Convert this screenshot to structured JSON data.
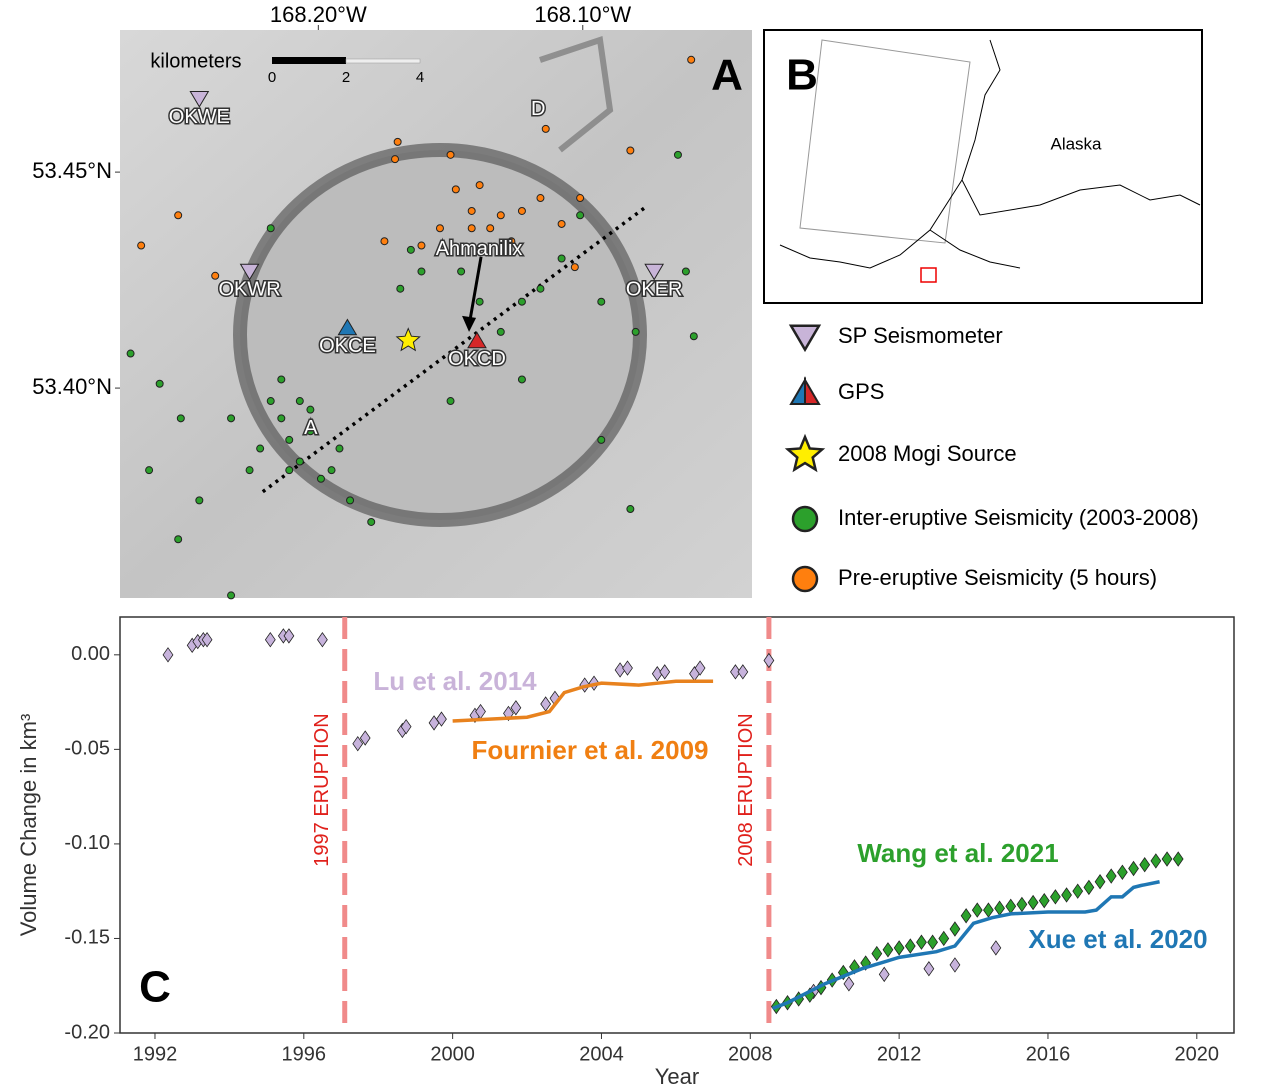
{
  "chart_data": [
    {
      "type": "map",
      "panel_label": "A",
      "xlim": [
        -168.275,
        -168.036
      ],
      "ylim": [
        53.3514,
        53.4829
      ],
      "xticks": [
        {
          "value": -168.2,
          "label": "168.20°W"
        },
        {
          "value": -168.1,
          "label": "168.10°W"
        }
      ],
      "yticks": [
        {
          "value": 53.4,
          "label": "53.40°N"
        },
        {
          "value": 53.45,
          "label": "53.45°N"
        }
      ],
      "scale_bar": {
        "title": "kilometers",
        "ticks": [
          0,
          2,
          4
        ]
      },
      "profile": {
        "lon": [
          -168.221,
          -168.076
        ],
        "lat": [
          53.376,
          53.442
        ],
        "labels": [
          "A",
          "D"
        ]
      },
      "annotation": {
        "text": "Ahmanilix",
        "lon": -168.143,
        "lat": 53.413
      },
      "series": [
        {
          "name": "SP Seismometer",
          "marker": "triangle-down",
          "color": "#c8b4d8",
          "labels": [
            "OKWE",
            "OKWR",
            "OKER"
          ],
          "lon": [
            -168.245,
            -168.226,
            -168.073
          ],
          "lat": [
            53.467,
            53.427,
            53.427
          ]
        },
        {
          "name": "GPS",
          "marker": "triangle",
          "colors": [
            "#1f77b4",
            "#d62728"
          ],
          "labels": [
            "OKCE",
            "OKCD"
          ],
          "lon": [
            -168.189,
            -168.14
          ],
          "lat": [
            53.414,
            53.411
          ]
        },
        {
          "name": "2008 Mogi Source",
          "marker": "star",
          "color": "#ffee00",
          "lon": [
            -168.166
          ],
          "lat": [
            53.411
          ]
        },
        {
          "name": "Inter-eruptive Seismicity (2003-2008)",
          "marker": "circle",
          "color": "#2ca02c",
          "lon": [
            -168.271,
            -168.26,
            -168.252,
            -168.264,
            -168.253,
            -168.233,
            -168.218,
            -168.214,
            -168.211,
            -168.207,
            -168.203,
            -168.222,
            -168.199,
            -168.192,
            -168.226,
            -168.207,
            -168.188,
            -168.18,
            -168.233,
            -168.245,
            -168.218,
            -168.161,
            -168.146,
            -168.139,
            -168.131,
            -168.123,
            -168.116,
            -168.108,
            -168.093,
            -168.08,
            -168.061,
            -168.064,
            -168.058,
            -168.093,
            -168.15,
            -168.123,
            -168.169,
            -168.165,
            -168.101,
            -168.082,
            -168.211,
            -168.214,
            -168.203,
            -168.195
          ],
          "lat": [
            53.408,
            53.401,
            53.393,
            53.381,
            53.365,
            53.352,
            53.397,
            53.393,
            53.388,
            53.383,
            53.39,
            53.386,
            53.379,
            53.386,
            53.381,
            53.397,
            53.374,
            53.369,
            53.393,
            53.374,
            53.437,
            53.427,
            53.427,
            53.42,
            53.413,
            53.42,
            53.423,
            53.43,
            53.42,
            53.413,
            53.427,
            53.454,
            53.412,
            53.388,
            53.397,
            53.402,
            53.423,
            53.432,
            53.44,
            53.372,
            53.381,
            53.402,
            53.395,
            53.381
          ]
        },
        {
          "name": "Pre-eruptive Seismicity (5 hours)",
          "marker": "circle",
          "color": "#ff7f0e",
          "lon": [
            -168.267,
            -168.253,
            -168.239,
            -168.17,
            -168.15,
            -168.139,
            -168.142,
            -168.131,
            -168.123,
            -168.116,
            -168.108,
            -168.101,
            -168.103,
            -168.175,
            -168.161,
            -168.154,
            -168.142,
            -168.127,
            -168.114,
            -168.082,
            -168.059,
            -168.171,
            -168.135,
            -168.148
          ],
          "lat": [
            53.433,
            53.44,
            53.426,
            53.457,
            53.454,
            53.447,
            53.441,
            53.44,
            53.441,
            53.444,
            53.438,
            53.444,
            53.428,
            53.434,
            53.433,
            53.437,
            53.437,
            53.434,
            53.46,
            53.455,
            53.476,
            53.453,
            53.437,
            53.446
          ]
        }
      ]
    },
    {
      "type": "line",
      "panel_label": "C",
      "x_label": "Year",
      "y_label": "Volume Change in km³",
      "xlim": [
        1991.06,
        2021.0
      ],
      "ylim": [
        -0.2,
        0.02
      ],
      "xticks": [
        1992,
        1996,
        2000,
        2004,
        2008,
        2012,
        2016,
        2020
      ],
      "yticks": [
        {
          "value": 0,
          "label": "0.00"
        },
        {
          "value": -0.05,
          "label": "-0.05"
        },
        {
          "value": -0.1,
          "label": "-0.10"
        },
        {
          "value": -0.15,
          "label": "-0.15"
        },
        {
          "value": -0.2,
          "label": "-0.20"
        }
      ],
      "events": [
        {
          "x": 1997.1,
          "label": "1997 ERUPTION"
        },
        {
          "x": 2008.5,
          "label": "2008 ERUPTION"
        }
      ],
      "series": [
        {
          "name": "Lu et al. 2014",
          "style": "diamond",
          "color": "#c7b3dc",
          "label_color": "#c9b3d9",
          "x": [
            1992.35,
            1993.0,
            1993.15,
            1993.3,
            1993.4,
            1995.1,
            1995.45,
            1995.6,
            1996.5,
            1997.45,
            1997.65,
            1998.65,
            1998.75,
            1999.5,
            1999.7,
            2000.6,
            2000.75,
            2001.5,
            2001.7,
            2002.5,
            2002.75,
            2003.55,
            2003.8,
            2004.5,
            2004.7,
            2005.5,
            2005.7,
            2006.5,
            2006.65,
            2007.6,
            2007.8,
            2008.5,
            2009.7,
            2010.65,
            2011.6,
            2012.8,
            2013.5,
            2014.6
          ],
          "values": [
            0.0,
            0.005,
            0.007,
            0.008,
            0.008,
            0.008,
            0.01,
            0.01,
            0.008,
            -0.047,
            -0.044,
            -0.04,
            -0.038,
            -0.036,
            -0.034,
            -0.032,
            -0.03,
            -0.031,
            -0.028,
            -0.026,
            -0.023,
            -0.016,
            -0.015,
            -0.008,
            -0.007,
            -0.01,
            -0.009,
            -0.01,
            -0.007,
            -0.009,
            -0.009,
            -0.003,
            -0.178,
            -0.174,
            -0.169,
            -0.166,
            -0.164,
            -0.155
          ]
        },
        {
          "name": "Fournier et al. 2009",
          "style": "line",
          "color": "#e8821e",
          "label_color": "#f07f12",
          "x": [
            2000,
            2001,
            2002,
            2002.6,
            2003,
            2003.5,
            2004,
            2005,
            2005.5,
            2006,
            2007
          ],
          "values": [
            -0.035,
            -0.034,
            -0.033,
            -0.03,
            -0.02,
            -0.017,
            -0.015,
            -0.016,
            -0.015,
            -0.014,
            -0.014
          ]
        },
        {
          "name": "Wang et al. 2021",
          "style": "diamond",
          "color": "#2ca02c",
          "label_color": "#2ca02c",
          "x": [
            2008.7,
            2009.0,
            2009.3,
            2009.6,
            2009.9,
            2010.2,
            2010.5,
            2010.8,
            2011.1,
            2011.4,
            2011.7,
            2012.0,
            2012.3,
            2012.6,
            2012.9,
            2013.2,
            2013.5,
            2013.8,
            2014.1,
            2014.4,
            2014.7,
            2015.0,
            2015.3,
            2015.6,
            2015.9,
            2016.2,
            2016.5,
            2016.8,
            2017.1,
            2017.4,
            2017.7,
            2018.0,
            2018.3,
            2018.6,
            2018.9,
            2019.2,
            2019.5
          ],
          "values": [
            -0.186,
            -0.184,
            -0.182,
            -0.18,
            -0.176,
            -0.172,
            -0.168,
            -0.165,
            -0.163,
            -0.158,
            -0.156,
            -0.155,
            -0.154,
            -0.152,
            -0.152,
            -0.15,
            -0.145,
            -0.138,
            -0.135,
            -0.135,
            -0.134,
            -0.133,
            -0.132,
            -0.131,
            -0.13,
            -0.128,
            -0.127,
            -0.125,
            -0.123,
            -0.12,
            -0.117,
            -0.115,
            -0.113,
            -0.111,
            -0.109,
            -0.108,
            -0.108
          ]
        },
        {
          "name": "Xue et al. 2020",
          "style": "line",
          "color": "#1f77b4",
          "label_color": "#1f77b4",
          "x": [
            2008.6,
            2009,
            2010,
            2011,
            2012,
            2013,
            2013.5,
            2014,
            2014.5,
            2015,
            2016,
            2017,
            2017.3,
            2017.7,
            2018,
            2018.3,
            2018.5,
            2019
          ],
          "values": [
            -0.187,
            -0.184,
            -0.174,
            -0.166,
            -0.16,
            -0.157,
            -0.154,
            -0.142,
            -0.139,
            -0.137,
            -0.136,
            -0.136,
            -0.135,
            -0.128,
            -0.128,
            -0.123,
            -0.122,
            -0.12
          ]
        }
      ]
    }
  ],
  "inset": {
    "panel_label": "B",
    "region": "Alaska"
  }
}
